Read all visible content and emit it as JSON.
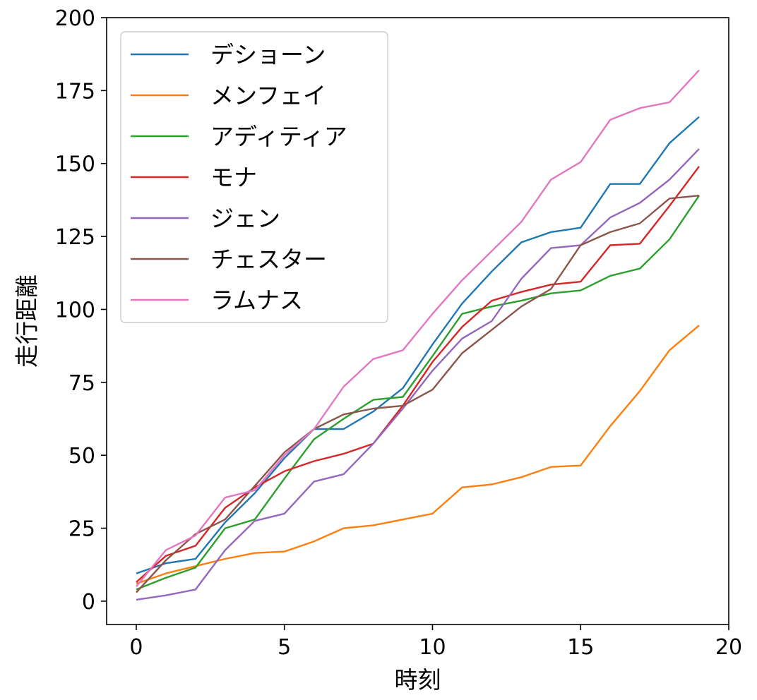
{
  "chart_data": {
    "type": "line",
    "title": "",
    "xlabel": "時刻",
    "ylabel": "走行距離",
    "xlim": [
      -1,
      20
    ],
    "ylim": [
      -8,
      200
    ],
    "xticks": [
      0,
      5,
      10,
      15,
      20
    ],
    "yticks": [
      0,
      25,
      50,
      75,
      100,
      125,
      150,
      175,
      200
    ],
    "grid": false,
    "legend_position": "top-left",
    "x": [
      0,
      1,
      2,
      3,
      4,
      5,
      6,
      7,
      8,
      9,
      10,
      11,
      12,
      13,
      14,
      15,
      16,
      17,
      18,
      19
    ],
    "series": [
      {
        "name": "デショーン",
        "color": "#1f77b4",
        "values": [
          9.5,
          13,
          14.5,
          27,
          37,
          49,
          59,
          59,
          65,
          73,
          88,
          102,
          113,
          123,
          126.5,
          128,
          143,
          143,
          157,
          166
        ]
      },
      {
        "name": "メンフェイ",
        "color": "#ff7f0e",
        "values": [
          6,
          9.5,
          12,
          14.5,
          16.5,
          17,
          20.5,
          25,
          26,
          28,
          30,
          39,
          40,
          42.5,
          46,
          46.5,
          60,
          72,
          86,
          94.5
        ]
      },
      {
        "name": "アディティア",
        "color": "#2ca02c",
        "values": [
          4,
          8,
          11.5,
          25,
          28,
          42,
          55.5,
          62.5,
          69,
          70,
          84,
          98.5,
          101,
          103,
          105.5,
          106.5,
          111.5,
          114,
          124,
          139
        ]
      },
      {
        "name": "モナ",
        "color": "#d62728",
        "values": [
          6.5,
          15.5,
          19,
          32,
          39,
          44.5,
          48,
          50.5,
          54,
          67,
          82,
          94,
          103,
          106,
          108.5,
          109.5,
          122,
          122.5,
          135.5,
          149
        ]
      },
      {
        "name": "ジェン",
        "color": "#9467bd",
        "values": [
          0.5,
          2,
          4,
          17.5,
          27.5,
          30,
          41,
          43.5,
          54,
          66,
          79,
          90,
          96,
          110.5,
          121,
          122,
          131.5,
          136.5,
          144.5,
          155
        ]
      },
      {
        "name": "チェスター",
        "color": "#8c564b",
        "values": [
          3,
          14,
          23,
          28,
          39.5,
          51,
          59,
          64,
          66,
          67,
          72.5,
          85,
          93,
          101,
          107,
          122,
          126.5,
          129.5,
          138,
          139
        ]
      },
      {
        "name": "ラムナス",
        "color": "#e377c2",
        "values": [
          5,
          17.5,
          22.5,
          35.5,
          38,
          50,
          59,
          73.5,
          83,
          86,
          98.5,
          110,
          120,
          130,
          144.5,
          150.5,
          165,
          169,
          171,
          182
        ]
      }
    ]
  }
}
